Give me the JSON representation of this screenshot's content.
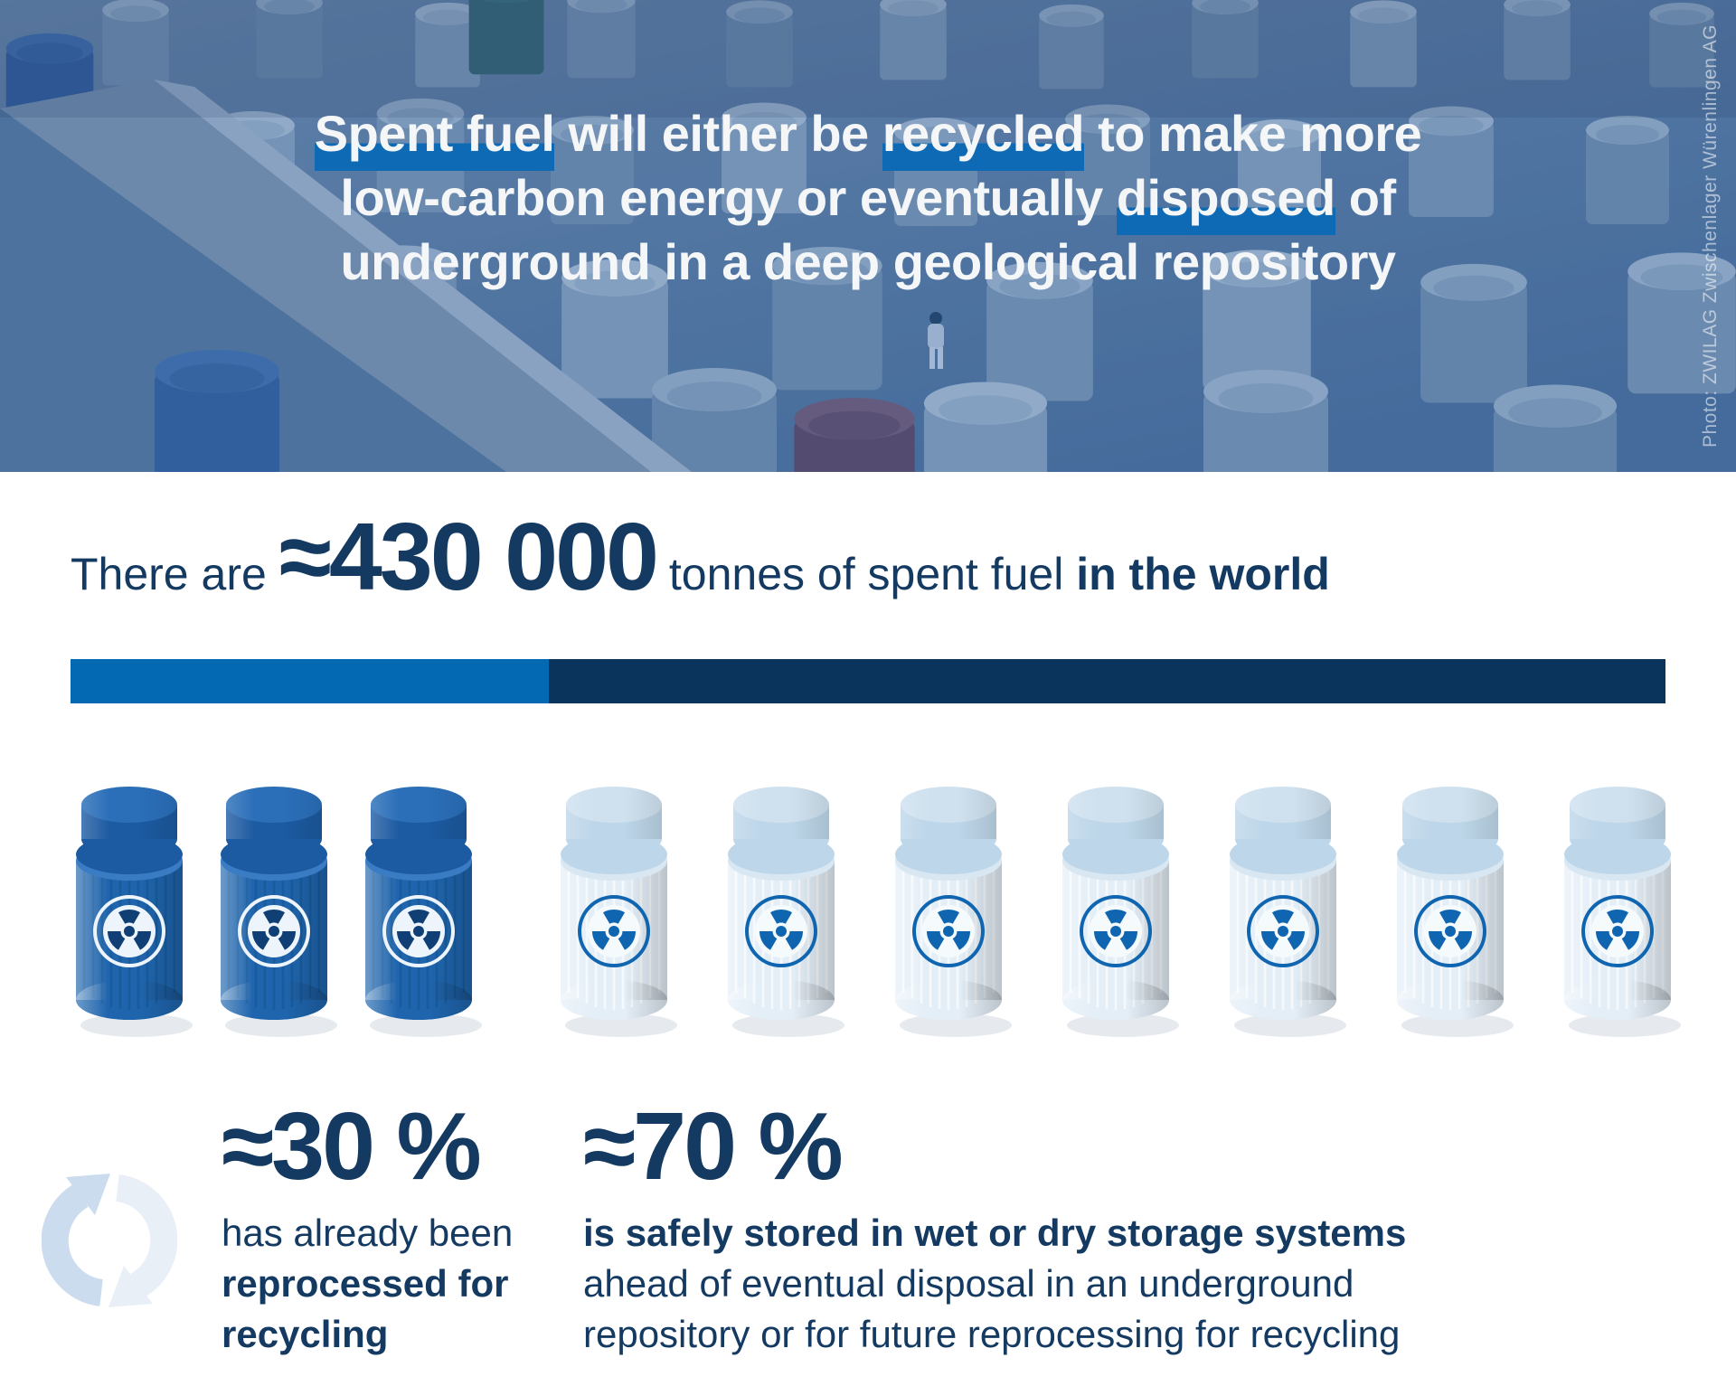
{
  "hero": {
    "headline": {
      "l1_hl1": "Spent fuel",
      "l1_mid": " will either be ",
      "l1_hl2": "recycled",
      "l1_end": " to make more",
      "l2_start": "low-carbon energy or eventually ",
      "l2_hl": "disposed",
      "l2_end": " of",
      "l3": "underground in a deep geological repository",
      "highlight_color": "#0f6ab6",
      "text_color": "#f4f6f8"
    },
    "photo_credit": "Photo: ZWILAG Zwischenlager Würenlingen AG"
  },
  "total_line": {
    "pre": "There are ",
    "value": "≈430 000",
    "mid": " tonnes of spent fuel ",
    "emph": "in the world",
    "color": "#143a62"
  },
  "split_bar": {
    "recycled_pct": 30,
    "stored_pct": 70,
    "recycled_color": "#0269b2",
    "stored_color": "#0a345c"
  },
  "canisters": {
    "recycled_count": 3,
    "stored_count": 7,
    "recycled_color": "#1f65ad",
    "stored_color": "#e4eef7",
    "badge": "radiation-trefoil"
  },
  "stats": {
    "recycled": {
      "value": "≈30 %",
      "text_regular": "has already been",
      "text_bold": "reprocessed for recycling",
      "icon": "recycle-arrows"
    },
    "stored": {
      "value": "≈70 %",
      "text_bold": "is safely stored in wet or dry storage systems",
      "text_regular": "ahead of eventual disposal in an underground repository or for future reprocessing for recycling"
    }
  },
  "chart_data": {
    "type": "bar",
    "title": "There are ≈430 000 tonnes of spent fuel in the world",
    "subtitle": "Spent fuel will either be recycled to make more low-carbon energy or eventually disposed of underground in a deep geological repository",
    "categories": [
      "Spent fuel worldwide"
    ],
    "series": [
      {
        "name": "Reprocessed for recycling",
        "values": [
          30
        ],
        "color": "#0269b2"
      },
      {
        "name": "Safely stored in wet or dry storage systems",
        "values": [
          70
        ],
        "color": "#0a345c"
      }
    ],
    "unit": "%",
    "total_tonnes": 430000,
    "pictograph": {
      "total_icons": 10,
      "recycled_icons": 3,
      "stored_icons": 7
    },
    "legend_position": "below",
    "grid": false
  }
}
